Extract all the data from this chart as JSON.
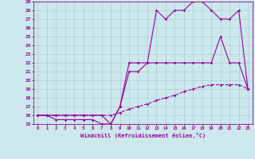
{
  "xlabel": "Windchill (Refroidissement éolien,°C)",
  "bg_color": "#cce8ec",
  "grid_color": "#aacdd4",
  "line_color": "#990099",
  "xlim": [
    -0.5,
    23.5
  ],
  "ylim": [
    15,
    29
  ],
  "xticks": [
    0,
    1,
    2,
    3,
    4,
    5,
    6,
    7,
    8,
    9,
    10,
    11,
    12,
    13,
    14,
    15,
    16,
    17,
    18,
    19,
    20,
    21,
    22,
    23
  ],
  "yticks": [
    15,
    16,
    17,
    18,
    19,
    20,
    21,
    22,
    23,
    24,
    25,
    26,
    27,
    28,
    29
  ],
  "line1_x": [
    0,
    1,
    2,
    3,
    4,
    5,
    6,
    7,
    8,
    9,
    10,
    11,
    12,
    13,
    14,
    15,
    16,
    17,
    18,
    19,
    20,
    21,
    22,
    23
  ],
  "line1_y": [
    16,
    16,
    16,
    16,
    16,
    16,
    16,
    16,
    15,
    17,
    22,
    22,
    22,
    28,
    27,
    28,
    28,
    29,
    29,
    28,
    27,
    27,
    28,
    19
  ],
  "line2_x": [
    0,
    1,
    2,
    3,
    4,
    5,
    6,
    7,
    8,
    9,
    10,
    11,
    12,
    13,
    14,
    15,
    16,
    17,
    18,
    19,
    20,
    21,
    22,
    23
  ],
  "line2_y": [
    16,
    16,
    15.5,
    15.5,
    15.5,
    15.5,
    15.5,
    15,
    15,
    17,
    21,
    21,
    22,
    22,
    22,
    22,
    22,
    22,
    22,
    22,
    25,
    22,
    22,
    19
  ],
  "line3_x": [
    0,
    1,
    2,
    3,
    4,
    5,
    6,
    7,
    8,
    9,
    10,
    11,
    12,
    13,
    14,
    15,
    16,
    17,
    18,
    19,
    20,
    21,
    22,
    23
  ],
  "line3_y": [
    16,
    16,
    16,
    16,
    16,
    16,
    16,
    16,
    16,
    16.3,
    16.7,
    17,
    17.3,
    17.7,
    18,
    18.3,
    18.7,
    19,
    19.3,
    19.5,
    19.5,
    19.5,
    19.5,
    19
  ]
}
